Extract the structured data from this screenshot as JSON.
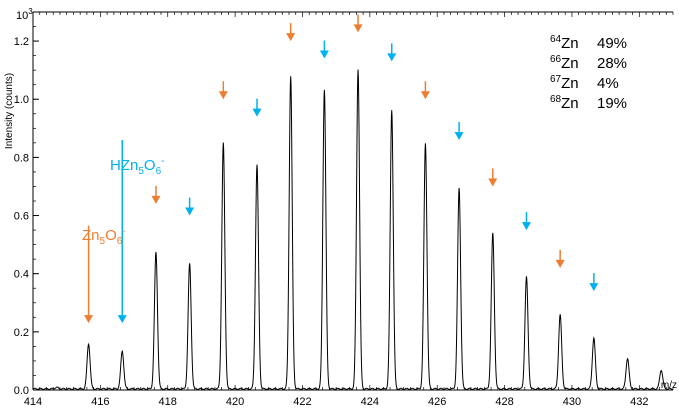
{
  "chart_data": {
    "type": "line",
    "xlabel": "m/z",
    "ylabel": "Intensity (counts)",
    "y_multiplier": "10",
    "y_multiplier_exp": "3",
    "xlim": [
      414,
      433
    ],
    "ylim": [
      0,
      1.3
    ],
    "x_ticks": [
      414,
      416,
      418,
      420,
      422,
      424,
      426,
      428,
      430,
      432
    ],
    "y_ticks": [
      0.0,
      0.2,
      0.4,
      0.6,
      0.8,
      1.0,
      1.2
    ],
    "peaks": [
      {
        "x": 414.7,
        "y": 0.005
      },
      {
        "x": 415.65,
        "y": 0.155
      },
      {
        "x": 416.65,
        "y": 0.13
      },
      {
        "x": 417.65,
        "y": 0.47
      },
      {
        "x": 418.65,
        "y": 0.43
      },
      {
        "x": 419.65,
        "y": 0.845
      },
      {
        "x": 420.65,
        "y": 0.77
      },
      {
        "x": 421.65,
        "y": 1.075
      },
      {
        "x": 422.65,
        "y": 1.03
      },
      {
        "x": 423.65,
        "y": 1.1
      },
      {
        "x": 424.65,
        "y": 0.96
      },
      {
        "x": 425.65,
        "y": 0.845
      },
      {
        "x": 426.65,
        "y": 0.69
      },
      {
        "x": 427.65,
        "y": 0.535
      },
      {
        "x": 428.65,
        "y": 0.385
      },
      {
        "x": 429.65,
        "y": 0.255
      },
      {
        "x": 430.65,
        "y": 0.175
      },
      {
        "x": 431.65,
        "y": 0.105
      },
      {
        "x": 432.65,
        "y": 0.065
      }
    ],
    "series_labels": [
      {
        "base": "Zn",
        "sub1": "5",
        "mid": "O",
        "sub2": "6",
        "sup": "-",
        "pre": "",
        "color": "#ED7D31"
      },
      {
        "base": "Zn",
        "sub1": "5",
        "mid": "O",
        "sub2": "6",
        "sup": "-",
        "pre": "H",
        "color": "#00B0F0"
      }
    ],
    "arrows": [
      {
        "x": 415.65,
        "y": 0.23,
        "series": 0,
        "long": true,
        "top": 0.565
      },
      {
        "x": 416.65,
        "y": 0.23,
        "series": 1,
        "long": true,
        "top": 0.86
      },
      {
        "x": 417.65,
        "y": 0.64,
        "series": 0
      },
      {
        "x": 418.65,
        "y": 0.6,
        "series": 1
      },
      {
        "x": 419.65,
        "y": 1.0,
        "series": 0
      },
      {
        "x": 420.65,
        "y": 0.94,
        "series": 1
      },
      {
        "x": 421.65,
        "y": 1.2,
        "series": 0
      },
      {
        "x": 422.65,
        "y": 1.14,
        "series": 1
      },
      {
        "x": 423.65,
        "y": 1.23,
        "series": 0
      },
      {
        "x": 424.65,
        "y": 1.13,
        "series": 1
      },
      {
        "x": 425.65,
        "y": 1.0,
        "series": 0
      },
      {
        "x": 426.65,
        "y": 0.86,
        "series": 1
      },
      {
        "x": 427.65,
        "y": 0.7,
        "series": 0
      },
      {
        "x": 428.65,
        "y": 0.55,
        "series": 1
      },
      {
        "x": 429.65,
        "y": 0.42,
        "series": 0
      },
      {
        "x": 430.65,
        "y": 0.34,
        "series": 1
      }
    ],
    "isotopes": [
      {
        "mass": "64",
        "el": "Zn",
        "pct": "49%"
      },
      {
        "mass": "66",
        "el": "Zn",
        "pct": "28%"
      },
      {
        "mass": "67",
        "el": "Zn",
        "pct": "4%"
      },
      {
        "mass": "68",
        "el": "Zn",
        "pct": "19%"
      }
    ]
  },
  "colors": {
    "series0": "#ED7D31",
    "series1": "#00B0F0",
    "line": "#000000"
  }
}
